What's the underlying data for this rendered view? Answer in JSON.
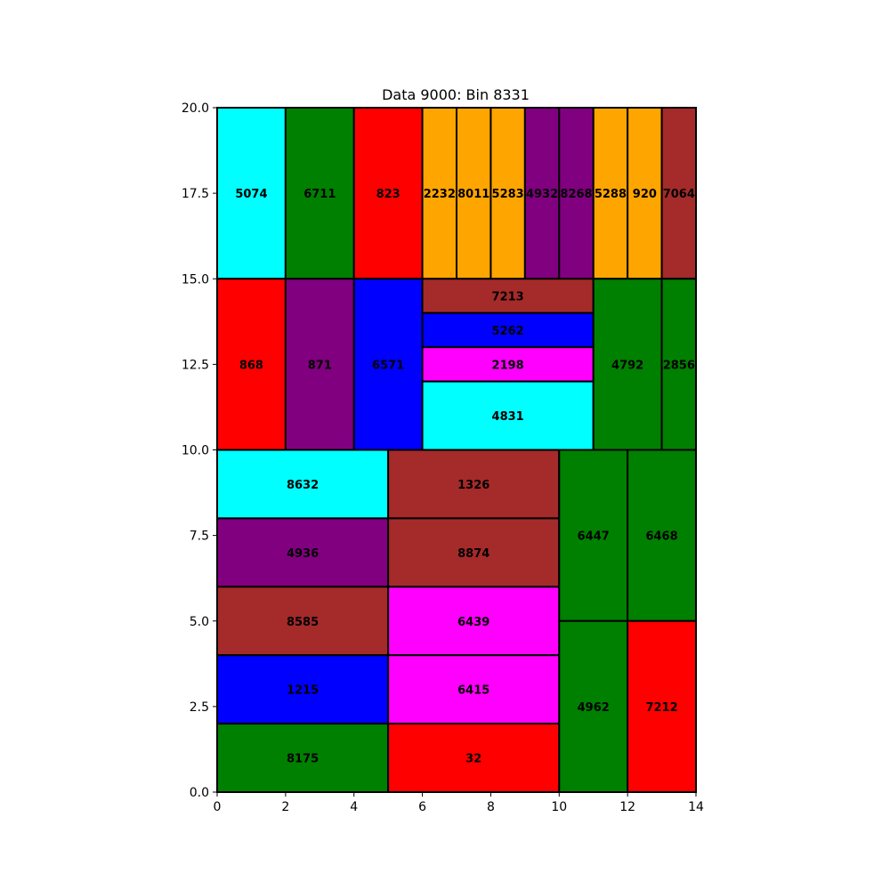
{
  "chart_data": {
    "type": "treemap",
    "title": "Data 9000: Bin 8331",
    "xlabel": "",
    "ylabel": "",
    "xlim": [
      0,
      14
    ],
    "ylim": [
      0,
      20
    ],
    "xticks": [
      "0",
      "2",
      "4",
      "6",
      "8",
      "10",
      "12",
      "14"
    ],
    "yticks": [
      "0.0",
      "2.5",
      "5.0",
      "7.5",
      "10.0",
      "12.5",
      "15.0",
      "17.5",
      "20.0"
    ],
    "grid": false,
    "rectangles": [
      {
        "label": "5074",
        "x": 0,
        "y": 15,
        "w": 2,
        "h": 5,
        "color": "#00ffff"
      },
      {
        "label": "6711",
        "x": 2,
        "y": 15,
        "w": 2,
        "h": 5,
        "color": "#008000"
      },
      {
        "label": "823",
        "x": 4,
        "y": 15,
        "w": 2,
        "h": 5,
        "color": "#ff0000"
      },
      {
        "label": "2232",
        "x": 6,
        "y": 15,
        "w": 1,
        "h": 5,
        "color": "#ffa500"
      },
      {
        "label": "8011",
        "x": 7,
        "y": 15,
        "w": 1,
        "h": 5,
        "color": "#ffa500"
      },
      {
        "label": "5283",
        "x": 8,
        "y": 15,
        "w": 1,
        "h": 5,
        "color": "#ffa500"
      },
      {
        "label": "4932",
        "x": 9,
        "y": 15,
        "w": 1,
        "h": 5,
        "color": "#800080"
      },
      {
        "label": "8268",
        "x": 10,
        "y": 15,
        "w": 1,
        "h": 5,
        "color": "#800080"
      },
      {
        "label": "5288",
        "x": 11,
        "y": 15,
        "w": 1,
        "h": 5,
        "color": "#ffa500"
      },
      {
        "label": "920",
        "x": 12,
        "y": 15,
        "w": 1,
        "h": 5,
        "color": "#ffa500"
      },
      {
        "label": "7064",
        "x": 13,
        "y": 15,
        "w": 1,
        "h": 5,
        "color": "#a52a2a"
      },
      {
        "label": "868",
        "x": 0,
        "y": 10,
        "w": 2,
        "h": 5,
        "color": "#ff0000"
      },
      {
        "label": "871",
        "x": 2,
        "y": 10,
        "w": 2,
        "h": 5,
        "color": "#800080"
      },
      {
        "label": "6571",
        "x": 4,
        "y": 10,
        "w": 2,
        "h": 5,
        "color": "#0000ff"
      },
      {
        "label": "7213",
        "x": 6,
        "y": 14,
        "w": 5,
        "h": 1,
        "color": "#a52a2a"
      },
      {
        "label": "5262",
        "x": 6,
        "y": 13,
        "w": 5,
        "h": 1,
        "color": "#0000ff"
      },
      {
        "label": "2198",
        "x": 6,
        "y": 12,
        "w": 5,
        "h": 1,
        "color": "#ff00ff"
      },
      {
        "label": "4831",
        "x": 6,
        "y": 10,
        "w": 5,
        "h": 2,
        "color": "#00ffff"
      },
      {
        "label": "4792",
        "x": 11,
        "y": 10,
        "w": 2,
        "h": 5,
        "color": "#008000"
      },
      {
        "label": "2856",
        "x": 13,
        "y": 10,
        "w": 1,
        "h": 5,
        "color": "#008000"
      },
      {
        "label": "8632",
        "x": 0,
        "y": 8,
        "w": 5,
        "h": 2,
        "color": "#00ffff"
      },
      {
        "label": "4936",
        "x": 0,
        "y": 6,
        "w": 5,
        "h": 2,
        "color": "#800080"
      },
      {
        "label": "8585",
        "x": 0,
        "y": 4,
        "w": 5,
        "h": 2,
        "color": "#a52a2a"
      },
      {
        "label": "1215",
        "x": 0,
        "y": 2,
        "w": 5,
        "h": 2,
        "color": "#0000ff"
      },
      {
        "label": "8175",
        "x": 0,
        "y": 0,
        "w": 5,
        "h": 2,
        "color": "#008000"
      },
      {
        "label": "1326",
        "x": 5,
        "y": 8,
        "w": 5,
        "h": 2,
        "color": "#a52a2a"
      },
      {
        "label": "8874",
        "x": 5,
        "y": 6,
        "w": 5,
        "h": 2,
        "color": "#a52a2a"
      },
      {
        "label": "6439",
        "x": 5,
        "y": 4,
        "w": 5,
        "h": 2,
        "color": "#ff00ff"
      },
      {
        "label": "6415",
        "x": 5,
        "y": 2,
        "w": 5,
        "h": 2,
        "color": "#ff00ff"
      },
      {
        "label": "32",
        "x": 5,
        "y": 0,
        "w": 5,
        "h": 2,
        "color": "#ff0000"
      },
      {
        "label": "6447",
        "x": 10,
        "y": 5,
        "w": 2,
        "h": 5,
        "color": "#008000"
      },
      {
        "label": "6468",
        "x": 12,
        "y": 5,
        "w": 2,
        "h": 5,
        "color": "#008000"
      },
      {
        "label": "4962",
        "x": 10,
        "y": 0,
        "w": 2,
        "h": 5,
        "color": "#008000"
      },
      {
        "label": "7212",
        "x": 12,
        "y": 0,
        "w": 2,
        "h": 5,
        "color": "#ff0000"
      }
    ]
  }
}
